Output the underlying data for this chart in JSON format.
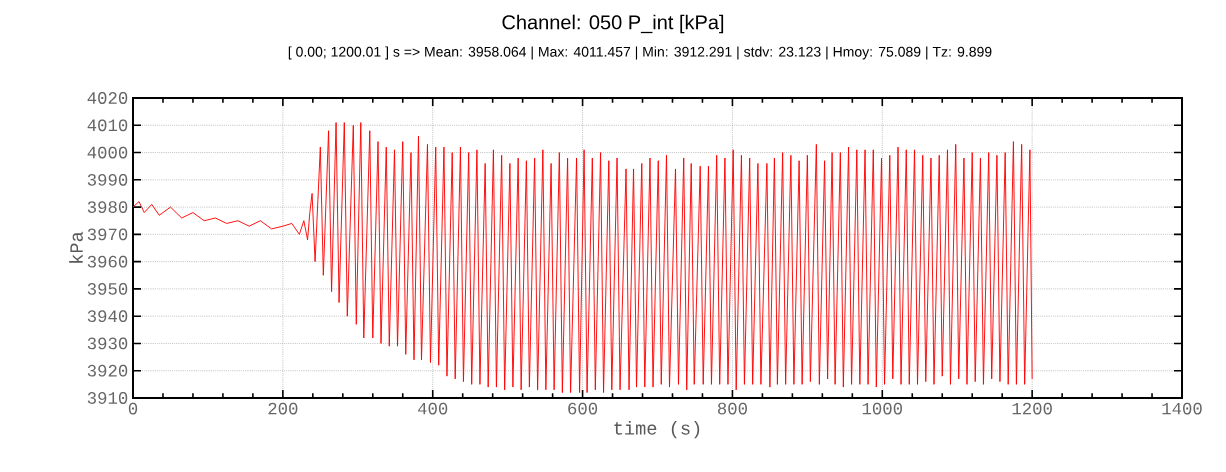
{
  "chart_data": {
    "type": "line",
    "title": "Channel: 050 P_int [kPa]",
    "subtitle": "[ 0.00; 1200.01 ] s  =>  Mean: 3958.064  |  Max: 4011.457  |   Min: 3912.291  |  stdv: 23.123  |  Hmoy: 75.089  |  Tz: 9.899",
    "xlabel": "time (s)",
    "ylabel": "kPa",
    "grid": true,
    "xlim": [
      0,
      1400
    ],
    "ylim": [
      3910,
      4020
    ],
    "xticks": [
      0,
      {
        "value": 40,
        "label": null
      },
      {
        "value": 80,
        "label": null
      },
      {
        "value": 120,
        "label": null
      },
      {
        "value": 160,
        "label": null
      },
      200,
      {
        "value": 240,
        "label": null
      },
      {
        "value": 280,
        "label": null
      },
      {
        "value": 320,
        "label": null
      },
      {
        "value": 360,
        "label": null
      },
      400,
      {
        "value": 440,
        "label": null
      },
      {
        "value": 480,
        "label": null
      },
      {
        "value": 520,
        "label": null
      },
      {
        "value": 560,
        "label": null
      },
      600,
      {
        "value": 640,
        "label": null
      },
      {
        "value": 680,
        "label": null
      },
      {
        "value": 720,
        "label": null
      },
      {
        "value": 760,
        "label": null
      },
      800,
      {
        "value": 840,
        "label": null
      },
      {
        "value": 880,
        "label": null
      },
      {
        "value": 920,
        "label": null
      },
      {
        "value": 960,
        "label": null
      },
      1000,
      {
        "value": 1040,
        "label": null
      },
      {
        "value": 1080,
        "label": null
      },
      {
        "value": 1120,
        "label": null
      },
      {
        "value": 1160,
        "label": null
      },
      1200,
      {
        "value": 1240,
        "label": null
      },
      {
        "value": 1280,
        "label": null
      },
      {
        "value": 1320,
        "label": null
      },
      {
        "value": 1360,
        "label": null
      },
      1400
    ],
    "yticks": [
      3910,
      3920,
      3930,
      3940,
      3950,
      3960,
      3970,
      3980,
      3990,
      4000,
      4010,
      4020
    ],
    "series": [
      {
        "color": "#ff0000",
        "x": [
          0,
          8,
          15,
          25,
          35,
          50,
          65,
          80,
          95,
          110,
          125,
          140,
          155,
          170,
          185,
          200,
          212,
          222,
          228,
          233,
          236,
          239,
          243,
          250,
          254,
          261,
          265,
          271,
          275,
          282,
          286,
          294,
          298,
          304,
          308,
          316,
          320,
          327,
          331,
          338,
          342,
          349,
          353,
          360,
          364,
          371,
          375,
          381,
          385,
          393,
          397,
          404,
          408,
          415,
          419,
          426,
          430,
          437,
          441,
          448,
          452,
          459,
          463,
          470,
          474,
          481,
          485,
          492,
          496,
          503,
          507,
          514,
          518,
          525,
          529,
          536,
          540,
          547,
          551,
          558,
          562,
          569,
          573,
          580,
          584,
          592,
          596,
          602,
          606,
          613,
          617,
          624,
          628,
          635,
          639,
          646,
          650,
          658,
          662,
          668,
          672,
          679,
          683,
          690,
          694,
          701,
          705,
          712,
          716,
          724,
          728,
          735,
          739,
          745,
          749,
          757,
          761,
          768,
          772,
          779,
          783,
          790,
          794,
          801,
          805,
          812,
          816,
          823,
          827,
          834,
          838,
          846,
          850,
          856,
          860,
          867,
          871,
          878,
          882,
          889,
          893,
          900,
          904,
          912,
          916,
          923,
          927,
          933,
          937,
          944,
          948,
          955,
          959,
          966,
          970,
          977,
          981,
          988,
          992,
          999,
          1003,
          1010,
          1014,
          1021,
          1025,
          1032,
          1036,
          1043,
          1047,
          1054,
          1058,
          1065,
          1069,
          1076,
          1080,
          1087,
          1091,
          1098,
          1102,
          1109,
          1113,
          1120,
          1124,
          1131,
          1135,
          1142,
          1146,
          1153,
          1157,
          1164,
          1168,
          1175,
          1179,
          1186,
          1190,
          1197,
          1200
        ],
        "values": [
          3980,
          3982,
          3978,
          3981,
          3977,
          3980,
          3976,
          3978,
          3975,
          3976,
          3974,
          3975,
          3973,
          3975,
          3972,
          3973,
          3974,
          3970,
          3975,
          3968,
          3978,
          3985,
          3960,
          4002,
          3955,
          4008,
          3949,
          4011,
          3945,
          4011,
          3940,
          4010,
          3937,
          4011,
          3932,
          4008,
          3932,
          4004,
          3930,
          4002,
          3929,
          4001,
          3929,
          4004,
          3926,
          4000,
          3924,
          4006,
          3924,
          4003,
          3923,
          4002,
          3922,
          4002,
          3918,
          4000,
          3917,
          4002,
          3916,
          4000,
          3915,
          4001,
          3915,
          3996,
          3914,
          4001,
          3914,
          3999,
          3913,
          3996,
          3914,
          3998,
          3913,
          3997,
          3914,
          3998,
          3913,
          4001,
          3913,
          3996,
          3913,
          4000,
          3912,
          3998,
          3912,
          3998,
          3912,
          4001,
          3912,
          3998,
          3913,
          4000,
          3912,
          3997,
          3913,
          3998,
          3913,
          3994,
          3913,
          3994,
          3914,
          3996,
          3914,
          3998,
          3914,
          3997,
          3915,
          3999,
          3914,
          3994,
          3915,
          3998,
          3913,
          3996,
          3915,
          3995,
          3915,
          3995,
          3915,
          3999,
          3915,
          3998,
          3915,
          4001,
          3913,
          3999,
          3915,
          3998,
          3915,
          3996,
          3915,
          3996,
          3914,
          3998,
          3915,
          4000,
          3915,
          3999,
          3915,
          3997,
          3915,
          3999,
          3916,
          4003,
          3915,
          3997,
          3917,
          4000,
          3915,
          4000,
          3914,
          4002,
          3915,
          4001,
          3915,
          4001,
          3915,
          4001,
          3914,
          3998,
          3915,
          3999,
          3917,
          4002,
          3915,
          4001,
          3915,
          4001,
          3915,
          3999,
          3916,
          3998,
          3915,
          3999,
          3918,
          4001,
          3915,
          4003,
          3917,
          3998,
          3915,
          4000,
          3916,
          3998,
          3915,
          4000,
          3917,
          3999,
          3916,
          4000,
          3915,
          4004,
          3915,
          4003,
          3915,
          4001,
          3917
        ]
      }
    ]
  }
}
